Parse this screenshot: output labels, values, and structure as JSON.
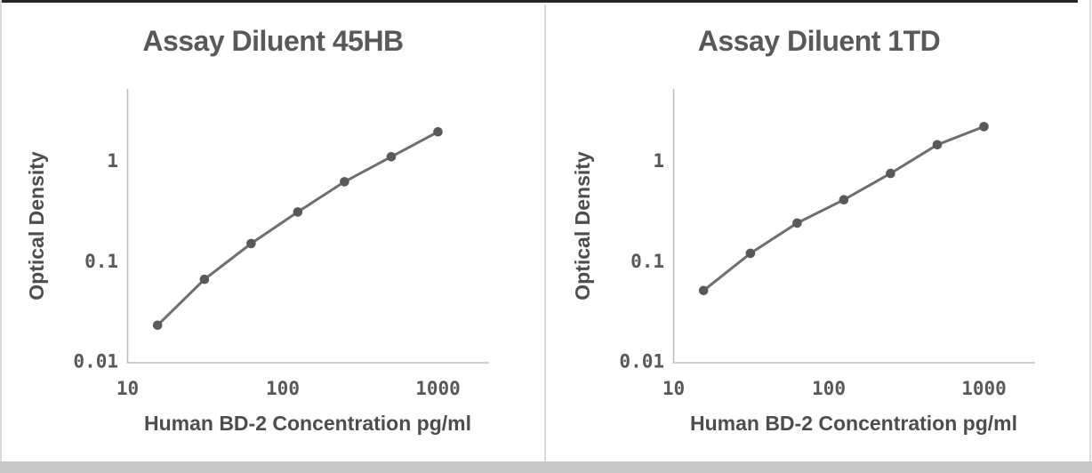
{
  "page": {
    "background": "#ffffff",
    "top_edge_color": "#262626",
    "side_border_color": "#d9d9d9",
    "divider_color": "#d9d9d9",
    "bottom_bar_color": "#c8c8c8",
    "title_color": "#595959",
    "axis_label_color": "#4d4d4d",
    "tick_color": "#595959",
    "axis_line_color": "#bfbfbf"
  },
  "chart_data": [
    {
      "type": "line",
      "title": "Assay Diluent 45HB",
      "xlabel": "Human BD-2 Concentration pg/ml",
      "ylabel": "Optical Density",
      "x_scale": "log",
      "y_scale": "log",
      "xlim": [
        10,
        2000
      ],
      "ylim": [
        0.01,
        5
      ],
      "x_ticks": [
        10,
        100,
        1000
      ],
      "y_ticks": [
        1,
        0.1,
        0.01
      ],
      "grid": false,
      "legend": false,
      "marker": "circle",
      "line_color": "#6e6e6e",
      "marker_color": "#595959",
      "x": [
        15.6,
        31.25,
        62.5,
        125,
        250,
        500,
        1000
      ],
      "y": [
        0.023,
        0.066,
        0.15,
        0.31,
        0.62,
        1.1,
        1.95
      ]
    },
    {
      "type": "line",
      "title": "Assay Diluent 1TD",
      "xlabel": "Human BD-2 Concentration pg/ml",
      "ylabel": "Optical Density",
      "x_scale": "log",
      "y_scale": "log",
      "xlim": [
        10,
        2000
      ],
      "ylim": [
        0.01,
        5
      ],
      "x_ticks": [
        10,
        100,
        1000
      ],
      "y_ticks": [
        1,
        0.1,
        0.01
      ],
      "grid": false,
      "legend": false,
      "marker": "circle",
      "line_color": "#6e6e6e",
      "marker_color": "#595959",
      "x": [
        15.6,
        31.25,
        62.5,
        125,
        250,
        500,
        1000
      ],
      "y": [
        0.051,
        0.12,
        0.24,
        0.41,
        0.75,
        1.45,
        2.2
      ]
    }
  ]
}
